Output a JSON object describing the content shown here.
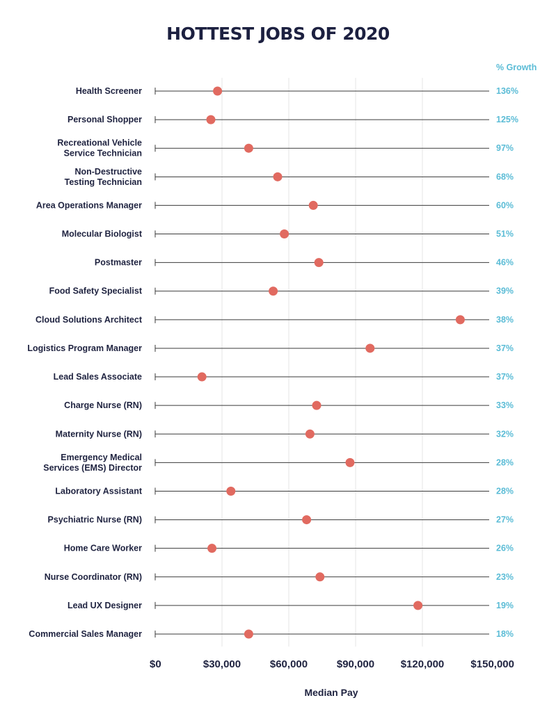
{
  "chart_data": {
    "type": "scatter",
    "title": "HOTTEST JOBS OF 2020",
    "xlabel": "Median Pay",
    "growth_header": "% Growth",
    "xlim": [
      0,
      150000
    ],
    "x_ticks": [
      0,
      30000,
      60000,
      90000,
      120000,
      150000
    ],
    "x_tick_labels": [
      "$0",
      "$30,000",
      "$60,000",
      "$90,000",
      "$120,000",
      "$150,000"
    ],
    "grid": true,
    "colors": {
      "point": "#e16a60",
      "growth": "#5bbcd6",
      "text": "#1f2340",
      "line": "#3a3a3a",
      "grid": "#e6e6e6"
    },
    "jobs": [
      {
        "name": [
          "Health Screener"
        ],
        "pay": 28000,
        "growth": "136%"
      },
      {
        "name": [
          "Personal Shopper"
        ],
        "pay": 25000,
        "growth": "125%"
      },
      {
        "name": [
          "Recreational Vehicle",
          "Service Technician"
        ],
        "pay": 42000,
        "growth": "97%"
      },
      {
        "name": [
          "Non-Destructive",
          "Testing Technician"
        ],
        "pay": 55000,
        "growth": "68%"
      },
      {
        "name": [
          "Area Operations Manager"
        ],
        "pay": 71000,
        "growth": "60%"
      },
      {
        "name": [
          "Molecular Biologist"
        ],
        "pay": 58000,
        "growth": "51%"
      },
      {
        "name": [
          "Postmaster"
        ],
        "pay": 73500,
        "growth": "46%"
      },
      {
        "name": [
          "Food Safety Specialist"
        ],
        "pay": 53000,
        "growth": "39%"
      },
      {
        "name": [
          "Cloud Solutions Architect"
        ],
        "pay": 137000,
        "growth": "38%"
      },
      {
        "name": [
          "Logistics Program Manager"
        ],
        "pay": 96500,
        "growth": "37%"
      },
      {
        "name": [
          "Lead Sales Associate"
        ],
        "pay": 21000,
        "growth": "37%"
      },
      {
        "name": [
          "Charge Nurse (RN)"
        ],
        "pay": 72500,
        "growth": "33%"
      },
      {
        "name": [
          "Maternity Nurse (RN)"
        ],
        "pay": 69500,
        "growth": "32%"
      },
      {
        "name": [
          "Emergency Medical",
          "Services (EMS) Director"
        ],
        "pay": 87500,
        "growth": "28%"
      },
      {
        "name": [
          "Laboratory Assistant"
        ],
        "pay": 34000,
        "growth": "28%"
      },
      {
        "name": [
          "Psychiatric Nurse (RN)"
        ],
        "pay": 68000,
        "growth": "27%"
      },
      {
        "name": [
          "Home Care Worker"
        ],
        "pay": 25500,
        "growth": "26%"
      },
      {
        "name": [
          "Nurse Coordinator (RN)"
        ],
        "pay": 74000,
        "growth": "23%"
      },
      {
        "name": [
          "Lead UX Designer"
        ],
        "pay": 118000,
        "growth": "19%"
      },
      {
        "name": [
          "Commercial Sales Manager"
        ],
        "pay": 42000,
        "growth": "18%"
      }
    ]
  }
}
